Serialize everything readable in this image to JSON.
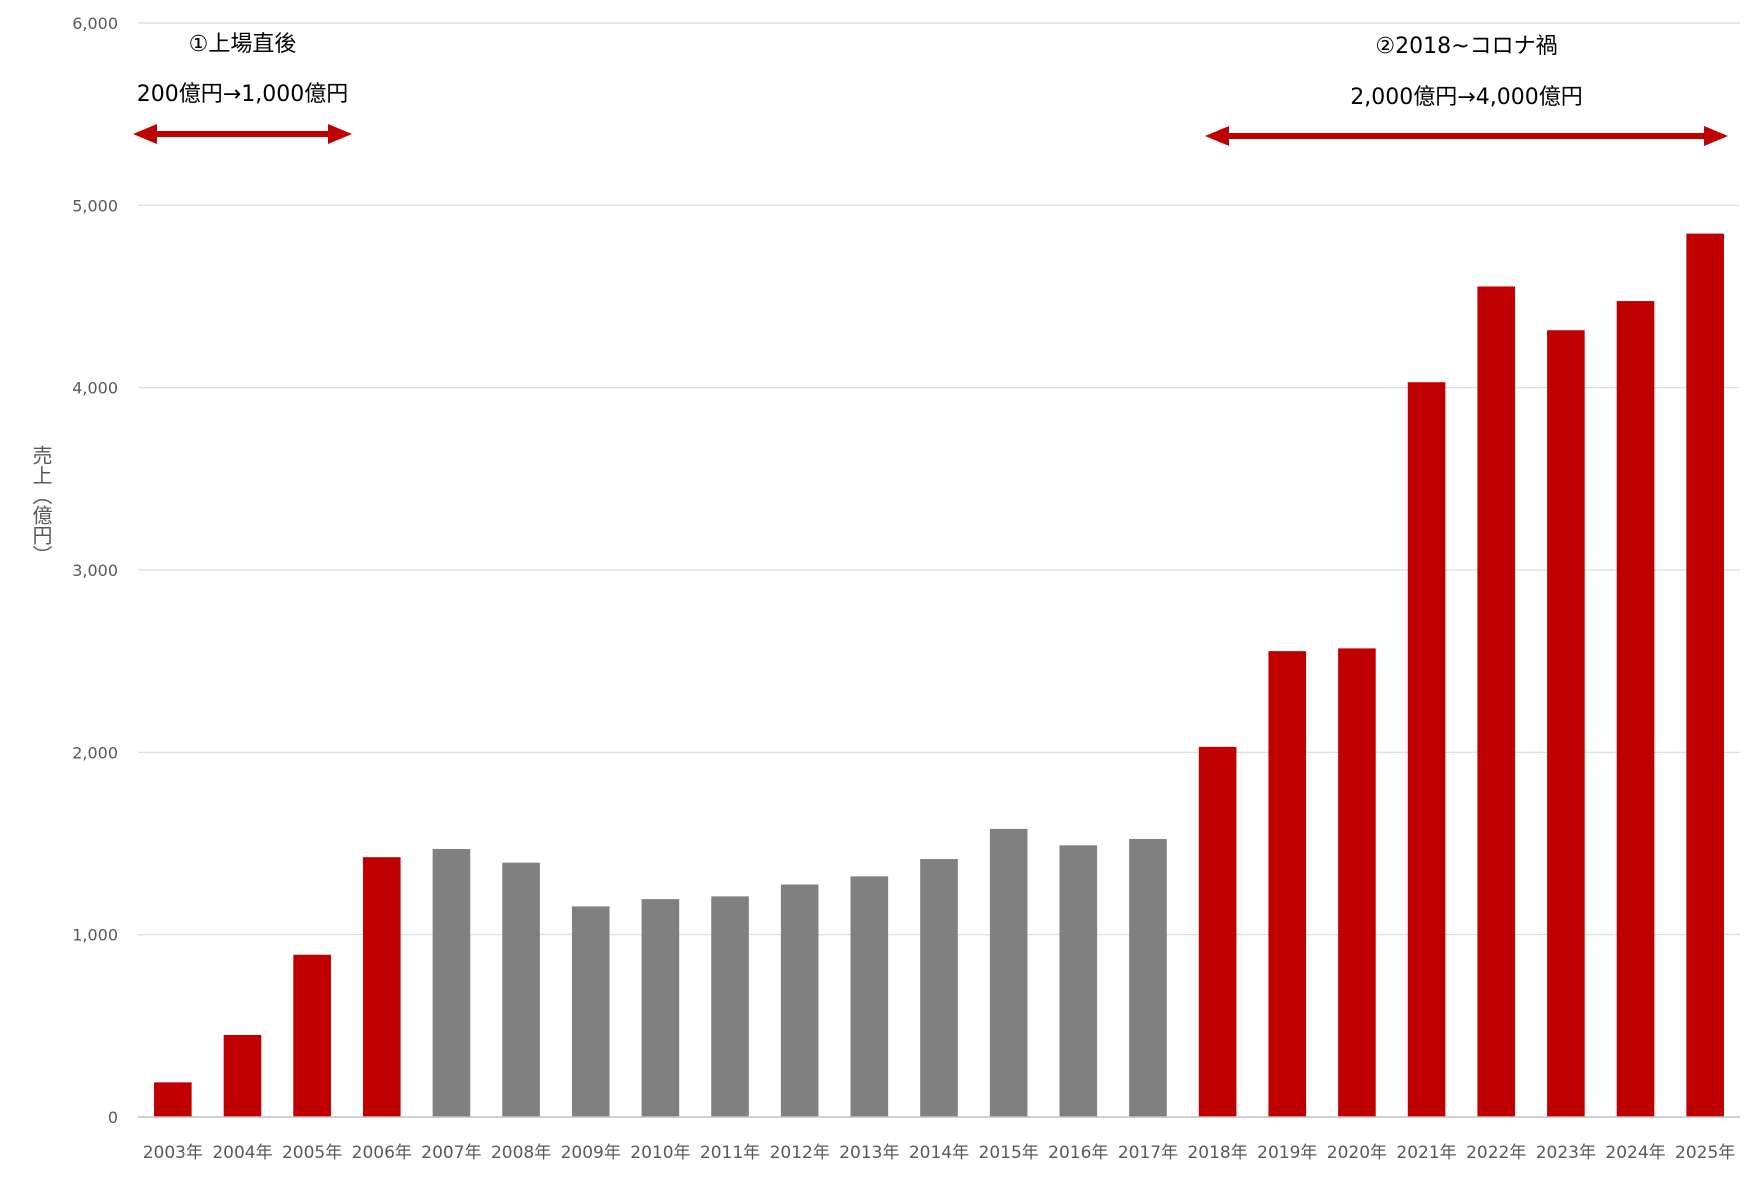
{
  "colors": {
    "highlight": "#c00000",
    "neutral": "#808080",
    "grid": "#d9d9d9",
    "axis": "#bfbfbf",
    "text": "#595959"
  },
  "chart_data": {
    "type": "bar",
    "ylabel": "売上（億円）",
    "ylim": [
      0,
      6000
    ],
    "yticks": [
      "0",
      "1,000",
      "2,000",
      "3,000",
      "4,000",
      "5,000",
      "6,000"
    ],
    "ytick_values": [
      0,
      1000,
      2000,
      3000,
      4000,
      5000,
      6000
    ],
    "grid": true,
    "categories": [
      "2003年",
      "2004年",
      "2005年",
      "2006年",
      "2007年",
      "2008年",
      "2009年",
      "2010年",
      "2011年",
      "2012年",
      "2013年",
      "2014年",
      "2015年",
      "2016年",
      "2017年",
      "2018年",
      "2019年",
      "2020年",
      "2021年",
      "2022年",
      "2023年",
      "2024年",
      "2025年"
    ],
    "values": [
      190,
      450,
      890,
      1425,
      1470,
      1395,
      1155,
      1195,
      1210,
      1275,
      1320,
      1415,
      1580,
      1490,
      1525,
      2030,
      2555,
      2570,
      4030,
      4555,
      4315,
      4475,
      4845
    ],
    "highlighted": [
      true,
      true,
      true,
      true,
      false,
      false,
      false,
      false,
      false,
      false,
      false,
      false,
      false,
      false,
      false,
      true,
      true,
      true,
      true,
      true,
      true,
      true,
      true
    ],
    "annotations": [
      {
        "title": "①上場直後",
        "subtitle": "200億円→1,000億円",
        "from": "2003年",
        "to": "2005年"
      },
      {
        "title": "②2018~コロナ禍",
        "subtitle": "2,000億円→4,000億円",
        "from": "2018年",
        "to": "2025年"
      }
    ]
  }
}
